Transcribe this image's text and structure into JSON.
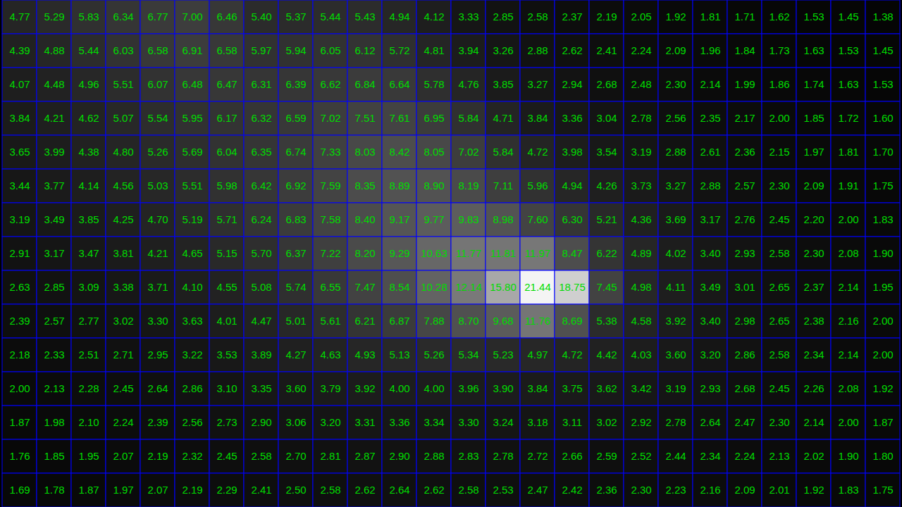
{
  "chart_data": {
    "type": "heatmap",
    "grid": true,
    "data_labels": true,
    "tick_labels": false,
    "color": "#00dd00",
    "cells": [
      [
        4.77,
        5.29,
        5.83,
        6.34,
        6.77,
        7.0,
        6.46,
        5.4,
        5.37,
        5.44,
        5.43,
        4.94,
        4.12,
        3.33,
        2.85,
        2.58,
        2.37,
        2.19,
        2.05,
        1.92,
        1.81,
        1.71,
        1.62,
        1.53,
        1.45,
        1.38
      ],
      [
        4.39,
        4.88,
        5.44,
        6.03,
        6.58,
        6.91,
        6.58,
        5.97,
        5.94,
        6.05,
        6.12,
        5.72,
        4.81,
        3.94,
        3.26,
        2.88,
        2.62,
        2.41,
        2.24,
        2.09,
        1.96,
        1.84,
        1.73,
        1.63,
        1.53,
        1.45
      ],
      [
        4.07,
        4.48,
        4.96,
        5.51,
        6.07,
        6.48,
        6.47,
        6.31,
        6.39,
        6.62,
        6.84,
        6.64,
        5.78,
        4.76,
        3.85,
        3.27,
        2.94,
        2.68,
        2.48,
        2.3,
        2.14,
        1.99,
        1.86,
        1.74,
        1.63,
        1.53
      ],
      [
        3.84,
        4.21,
        4.62,
        5.07,
        5.54,
        5.95,
        6.17,
        6.32,
        6.59,
        7.02,
        7.51,
        7.61,
        6.95,
        5.84,
        4.71,
        3.84,
        3.36,
        3.04,
        2.78,
        2.56,
        2.35,
        2.17,
        2.0,
        1.85,
        1.72,
        1.6
      ],
      [
        3.65,
        3.99,
        4.38,
        4.8,
        5.26,
        5.69,
        6.04,
        6.35,
        6.74,
        7.33,
        8.03,
        8.42,
        8.05,
        7.02,
        5.84,
        4.72,
        3.98,
        3.54,
        3.19,
        2.88,
        2.61,
        2.36,
        2.15,
        1.97,
        1.81,
        1.7
      ],
      [
        3.44,
        3.77,
        4.14,
        4.56,
        5.03,
        5.51,
        5.98,
        6.42,
        6.92,
        7.59,
        8.35,
        8.89,
        8.9,
        8.19,
        7.11,
        5.96,
        4.94,
        4.26,
        3.73,
        3.27,
        2.88,
        2.57,
        2.3,
        2.09,
        1.91,
        1.75
      ],
      [
        3.19,
        3.49,
        3.85,
        4.25,
        4.7,
        5.19,
        5.71,
        6.24,
        6.83,
        7.58,
        8.4,
        9.17,
        9.77,
        9.83,
        8.98,
        7.6,
        6.3,
        5.21,
        4.36,
        3.69,
        3.17,
        2.76,
        2.45,
        2.2,
        2.0,
        1.83
      ],
      [
        2.91,
        3.17,
        3.47,
        3.81,
        4.21,
        4.65,
        5.15,
        5.7,
        6.37,
        7.22,
        8.2,
        9.29,
        10.63,
        11.77,
        11.81,
        11.97,
        8.47,
        6.22,
        4.89,
        4.02,
        3.4,
        2.93,
        2.58,
        2.3,
        2.08,
        1.9
      ],
      [
        2.63,
        2.85,
        3.09,
        3.38,
        3.71,
        4.1,
        4.55,
        5.08,
        5.74,
        6.55,
        7.47,
        8.54,
        10.28,
        12.14,
        15.8,
        21.44,
        18.75,
        7.45,
        4.98,
        4.11,
        3.49,
        3.01,
        2.65,
        2.37,
        2.14,
        1.95
      ],
      [
        2.39,
        2.57,
        2.77,
        3.02,
        3.3,
        3.63,
        4.01,
        4.47,
        5.01,
        5.61,
        6.21,
        6.87,
        7.88,
        8.7,
        9.68,
        11.76,
        8.69,
        5.38,
        4.58,
        3.92,
        3.4,
        2.98,
        2.65,
        2.38,
        2.16,
        2.0
      ],
      [
        2.18,
        2.33,
        2.51,
        2.71,
        2.95,
        3.22,
        3.53,
        3.89,
        4.27,
        4.63,
        4.93,
        5.13,
        5.26,
        5.34,
        5.23,
        4.97,
        4.72,
        4.42,
        4.03,
        3.6,
        3.2,
        2.86,
        2.58,
        2.34,
        2.14,
        2.0
      ],
      [
        2.0,
        2.13,
        2.28,
        2.45,
        2.64,
        2.86,
        3.1,
        3.35,
        3.6,
        3.79,
        3.92,
        4.0,
        4.0,
        3.96,
        3.9,
        3.84,
        3.75,
        3.62,
        3.42,
        3.19,
        2.93,
        2.68,
        2.45,
        2.26,
        2.08,
        1.92
      ],
      [
        1.87,
        1.98,
        2.1,
        2.24,
        2.39,
        2.56,
        2.73,
        2.9,
        3.06,
        3.2,
        3.31,
        3.36,
        3.34,
        3.3,
        3.24,
        3.18,
        3.11,
        3.02,
        2.92,
        2.78,
        2.64,
        2.47,
        2.3,
        2.14,
        2.0,
        1.87
      ],
      [
        1.76,
        1.85,
        1.95,
        2.07,
        2.19,
        2.32,
        2.45,
        2.58,
        2.7,
        2.81,
        2.87,
        2.9,
        2.88,
        2.83,
        2.78,
        2.72,
        2.66,
        2.59,
        2.52,
        2.44,
        2.34,
        2.24,
        2.13,
        2.02,
        1.9,
        1.8
      ],
      [
        1.69,
        1.78,
        1.87,
        1.97,
        2.07,
        2.19,
        2.29,
        2.41,
        2.5,
        2.58,
        2.62,
        2.64,
        2.62,
        2.58,
        2.53,
        2.47,
        2.42,
        2.36,
        2.3,
        2.23,
        2.16,
        2.09,
        2.01,
        1.92,
        1.83,
        1.75
      ]
    ],
    "value_labels": [
      [
        "4.77",
        "5.29",
        "5.83",
        "6.34",
        "6.77",
        "7.00",
        "6.46",
        "5.40",
        "5.37",
        "5.44",
        "5.43",
        "4.94",
        "4.12",
        "3.33",
        "2.85",
        "2.58",
        "2.37",
        "2.19",
        "2.05",
        "1.92",
        "1.81",
        "1.71",
        "1.62",
        "1.53",
        "1.45",
        "1.38"
      ],
      [
        "4.39",
        "4.88",
        "5.44",
        "6.03",
        "6.58",
        "6.91",
        "6.58",
        "5.97",
        "5.94",
        "6.05",
        "6.12",
        "5.72",
        "4.81",
        "3.94",
        "3.26",
        "2.88",
        "2.62",
        "2.41",
        "2.24",
        "2.09",
        "1.96",
        "1.84",
        "1.73",
        "1.63",
        "1.53",
        "1.45"
      ],
      [
        "4.07",
        "4.48",
        "4.96",
        "5.51",
        "6.07",
        "6.48",
        "6.47",
        "6.31",
        "6.39",
        "6.62",
        "6.84",
        "6.64",
        "5.78",
        "4.76",
        "3.85",
        "3.27",
        "2.94",
        "2.68",
        "2.48",
        "2.30",
        "2.14",
        "1.99",
        "1.86",
        "1.74",
        "1.63",
        "1.53"
      ],
      [
        "3.84",
        "4.21",
        "4.62",
        "5.07",
        "5.54",
        "5.95",
        "6.17",
        "6.32",
        "6.59",
        "7.02",
        "7.51",
        "7.61",
        "6.95",
        "5.84",
        "4.71",
        "3.84",
        "3.36",
        "3.04",
        "2.78",
        "2.56",
        "2.35",
        "2.17",
        "2.00",
        "1.85",
        "1.72",
        "1.60"
      ],
      [
        "3.65",
        "3.99",
        "4.38",
        "4.80",
        "5.26",
        "5.69",
        "6.04",
        "6.35",
        "6.74",
        "7.33",
        "8.03",
        "8.42",
        "8.05",
        "7.02",
        "5.84",
        "4.72",
        "3.98",
        "3.54",
        "3.19",
        "2.88",
        "2.61",
        "2.36",
        "2.15",
        "1.97",
        "1.81",
        "1.70"
      ],
      [
        "3.44",
        "3.77",
        "4.14",
        "4.56",
        "5.03",
        "5.51",
        "5.98",
        "6.42",
        "6.92",
        "7.59",
        "8.35",
        "8.89",
        "8.90",
        "8.19",
        "7.11",
        "5.96",
        "4.94",
        "4.26",
        "3.73",
        "3.27",
        "2.88",
        "2.57",
        "2.30",
        "2.09",
        "1.91",
        "1.75"
      ],
      [
        "3.19",
        "3.49",
        "3.85",
        "4.25",
        "4.70",
        "5.19",
        "5.71",
        "6.24",
        "6.83",
        "7.58",
        "8.40",
        "9.17",
        "9.77",
        "9.83",
        "8.98",
        "7.60",
        "6.30",
        "5.21",
        "4.36",
        "3.69",
        "3.17",
        "2.76",
        "2.45",
        "2.20",
        "2.00",
        "1.83"
      ],
      [
        "2.91",
        "3.17",
        "3.47",
        "3.81",
        "4.21",
        "4.65",
        "5.15",
        "5.70",
        "6.37",
        "7.22",
        "8.20",
        "9.29",
        "10.63",
        "11.77",
        "11.81",
        "11.97",
        "8.47",
        "6.22",
        "4.89",
        "4.02",
        "3.40",
        "2.93",
        "2.58",
        "2.30",
        "2.08",
        "1.90"
      ],
      [
        "2.63",
        "2.85",
        "3.09",
        "3.38",
        "3.71",
        "4.10",
        "4.55",
        "5.08",
        "5.74",
        "6.55",
        "7.47",
        "8.54",
        "10.28",
        "12.14",
        "15.80",
        "21.44",
        "18.75",
        "7.45",
        "4.98",
        "4.11",
        "3.49",
        "3.01",
        "2.65",
        "2.37",
        "2.14",
        "1.95"
      ],
      [
        "2.39",
        "2.57",
        "2.77",
        "3.02",
        "3.30",
        "3.63",
        "4.01",
        "4.47",
        "5.01",
        "5.61",
        "6.21",
        "6.87",
        "7.88",
        "8.70",
        "9.68",
        "11.76",
        "8.69",
        "5.38",
        "4.58",
        "3.92",
        "3.40",
        "2.98",
        "2.65",
        "2.38",
        "2.16",
        "2.00"
      ],
      [
        "2.18",
        "2.33",
        "2.51",
        "2.71",
        "2.95",
        "3.22",
        "3.53",
        "3.89",
        "4.27",
        "4.63",
        "4.93",
        "5.13",
        "5.26",
        "5.34",
        "5.23",
        "4.97",
        "4.72",
        "4.42",
        "4.03",
        "3.60",
        "3.20",
        "2.86",
        "2.58",
        "2.34",
        "2.14",
        "2.00"
      ],
      [
        "2.00",
        "2.13",
        "2.28",
        "2.45",
        "2.64",
        "2.86",
        "3.10",
        "3.35",
        "3.60",
        "3.79",
        "3.92",
        "4.00",
        "4.00",
        "3.96",
        "3.90",
        "3.84",
        "3.75",
        "3.62",
        "3.42",
        "3.19",
        "2.93",
        "2.68",
        "2.45",
        "2.26",
        "2.08",
        "1.92"
      ],
      [
        "1.87",
        "1.98",
        "2.10",
        "2.24",
        "2.39",
        "2.56",
        "2.73",
        "2.90",
        "3.06",
        "3.20",
        "3.31",
        "3.36",
        "3.34",
        "3.30",
        "3.24",
        "3.18",
        "3.11",
        "3.02",
        "2.92",
        "2.78",
        "2.64",
        "2.47",
        "2.30",
        "2.14",
        "2.00",
        "1.87"
      ],
      [
        "1.76",
        "1.85",
        "1.95",
        "2.07",
        "2.19",
        "2.32",
        "2.45",
        "2.58",
        "2.70",
        "2.81",
        "2.87",
        "2.90",
        "2.88",
        "2.83",
        "2.78",
        "2.72",
        "2.66",
        "2.59",
        "2.52",
        "2.44",
        "2.34",
        "2.24",
        "2.13",
        "2.02",
        "1.90",
        "1.80"
      ],
      [
        "1.69",
        "1.78",
        "1.87",
        "1.97",
        "2.07",
        "2.19",
        "2.29",
        "2.41",
        "2.50",
        "2.58",
        "2.62",
        "2.64",
        "2.62",
        "2.58",
        "2.53",
        "2.47",
        "2.42",
        "2.36",
        "2.30",
        "2.23",
        "2.16",
        "2.09",
        "2.01",
        "1.92",
        "1.83",
        "1.75"
      ]
    ]
  }
}
